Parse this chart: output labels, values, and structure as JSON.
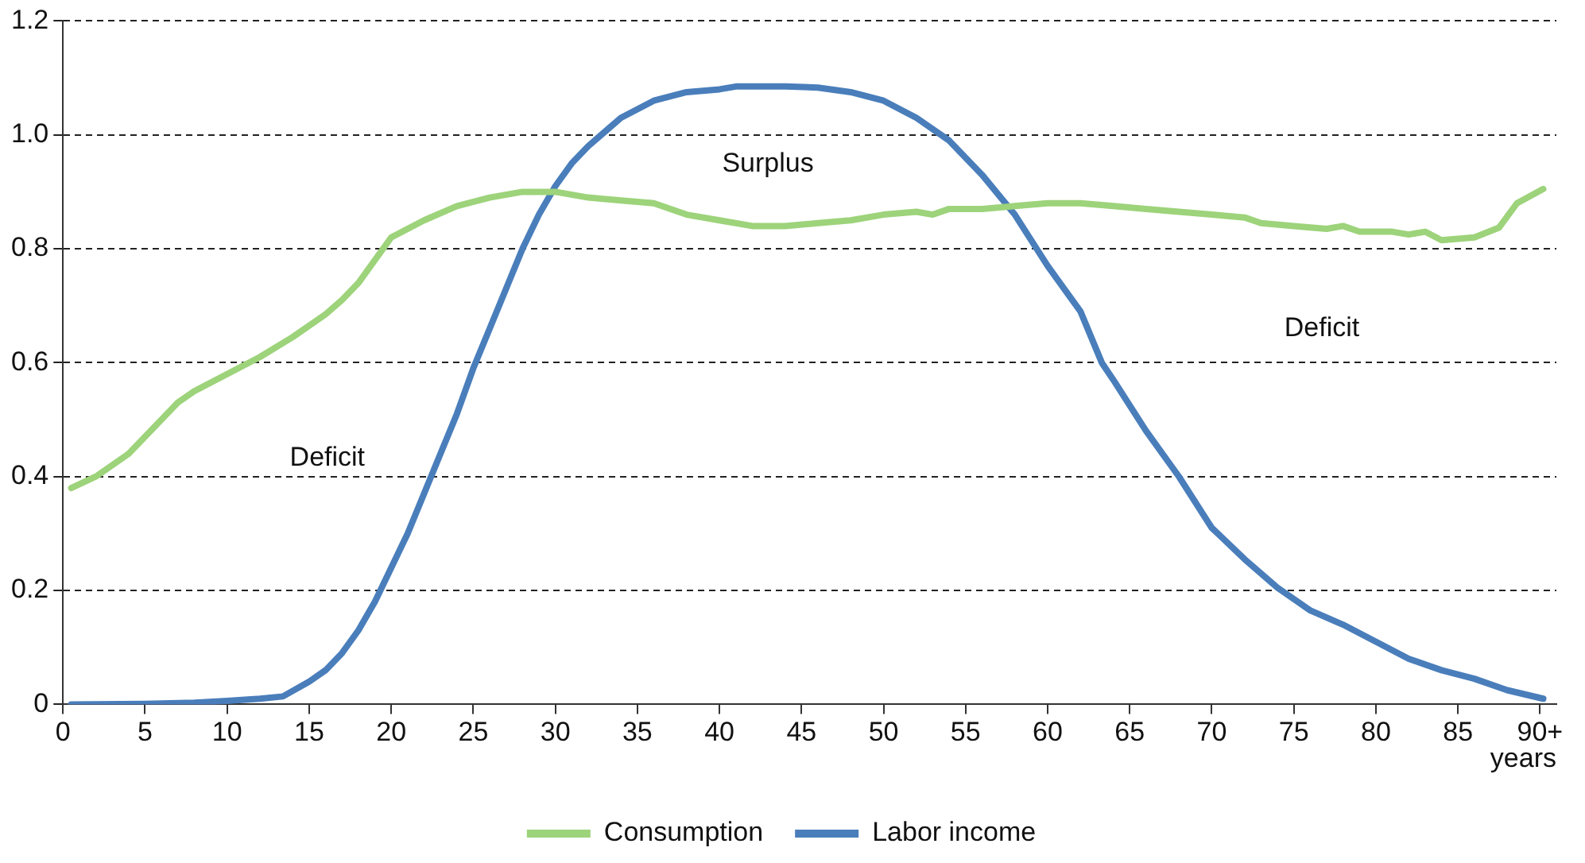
{
  "chart_data": {
    "type": "line",
    "xlabel": "years",
    "xlim": [
      0,
      91
    ],
    "xticks": [
      0,
      5,
      10,
      15,
      20,
      25,
      30,
      35,
      40,
      45,
      50,
      55,
      60,
      65,
      70,
      75,
      80,
      85,
      {
        "value": 90,
        "label": "90+"
      }
    ],
    "ylim": [
      0,
      1.2
    ],
    "yticks": [
      0,
      0.2,
      0.4,
      0.6,
      0.8,
      {
        "value": 1,
        "label": "1.0"
      },
      1.2
    ],
    "grid": "y",
    "legend": "bottom",
    "marker": "none",
    "line_style": "solid",
    "annotations": [
      "Surplus",
      "Deficit",
      "Deficit"
    ],
    "series": [
      {
        "name": "Consumption",
        "color": "#9dd37a",
        "x": [
          0.5,
          2,
          4,
          5,
          6,
          7,
          8,
          10,
          12,
          14,
          16,
          17,
          18,
          20,
          22,
          24,
          26,
          28,
          30,
          32,
          34,
          36,
          38,
          40,
          42,
          44,
          46,
          48,
          50,
          52,
          53,
          54,
          56,
          58,
          60,
          62,
          64,
          66,
          68,
          70,
          72,
          73,
          75,
          77,
          78,
          79,
          81,
          82,
          83,
          84,
          86,
          87.5,
          88.6,
          90.2
        ],
        "values": [
          0.38,
          0.4,
          0.44,
          0.47,
          0.5,
          0.53,
          0.55,
          0.58,
          0.61,
          0.645,
          0.685,
          0.71,
          0.74,
          0.82,
          0.85,
          0.875,
          0.89,
          0.9,
          0.9,
          0.89,
          0.885,
          0.88,
          0.86,
          0.85,
          0.84,
          0.84,
          0.845,
          0.85,
          0.86,
          0.865,
          0.86,
          0.87,
          0.87,
          0.875,
          0.88,
          0.88,
          0.875,
          0.87,
          0.865,
          0.86,
          0.855,
          0.845,
          0.84,
          0.835,
          0.84,
          0.83,
          0.83,
          0.825,
          0.83,
          0.815,
          0.82,
          0.837,
          0.88,
          0.905
        ]
      },
      {
        "name": "Labor income",
        "color": "#4a7ebb",
        "x": [
          0.5,
          5,
          8,
          10,
          12,
          13.4,
          15,
          16,
          17,
          18,
          19,
          20,
          21,
          22,
          23,
          24,
          25,
          26,
          27,
          28,
          29,
          30,
          31,
          32,
          34,
          36,
          38,
          40,
          41,
          44,
          46,
          48,
          50,
          52,
          54,
          56,
          58,
          60,
          62,
          63.3,
          64,
          66,
          68,
          70,
          72,
          74,
          76,
          78,
          80,
          82,
          84,
          86,
          88,
          90.2
        ],
        "values": [
          0,
          0.001,
          0.003,
          0.006,
          0.01,
          0.014,
          0.04,
          0.06,
          0.09,
          0.13,
          0.18,
          0.24,
          0.3,
          0.37,
          0.44,
          0.51,
          0.59,
          0.66,
          0.73,
          0.8,
          0.86,
          0.91,
          0.95,
          0.98,
          1.03,
          1.06,
          1.075,
          1.08,
          1.085,
          1.085,
          1.083,
          1.075,
          1.06,
          1.03,
          0.99,
          0.93,
          0.86,
          0.77,
          0.69,
          0.6,
          0.57,
          0.48,
          0.4,
          0.31,
          0.255,
          0.205,
          0.165,
          0.14,
          0.11,
          0.08,
          0.06,
          0.045,
          0.025,
          0.01
        ]
      }
    ]
  }
}
